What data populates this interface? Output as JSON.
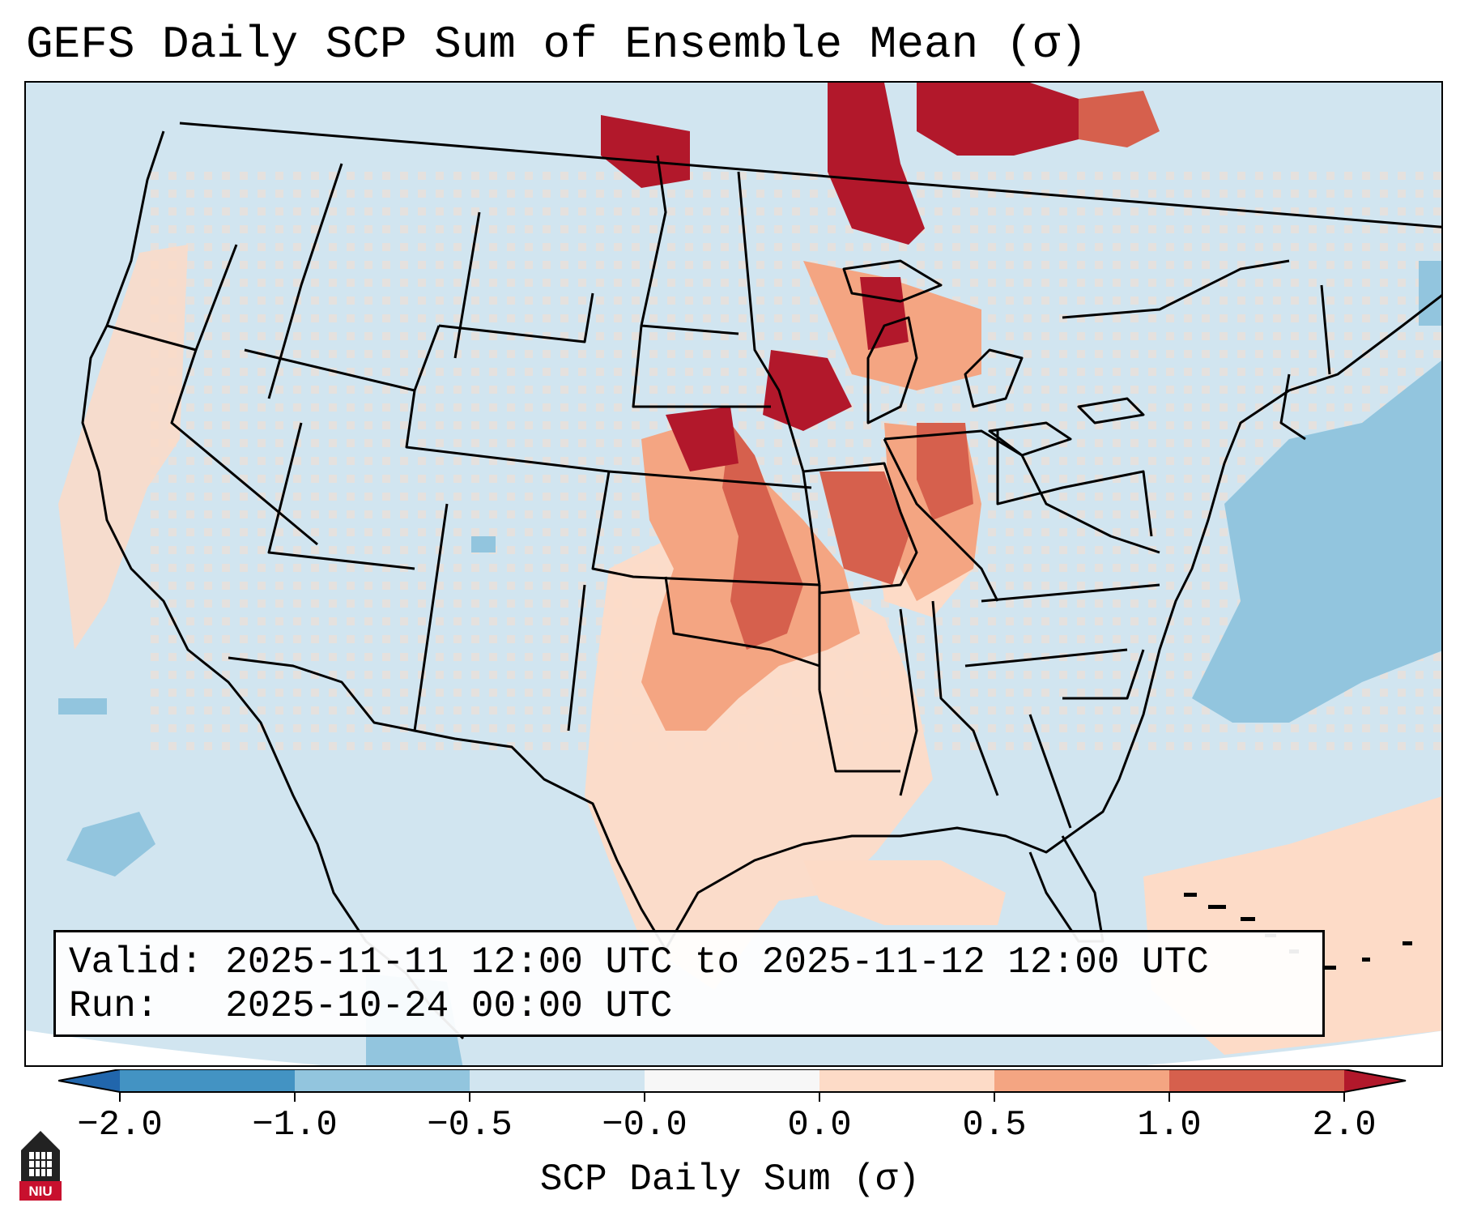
{
  "title": "GEFS Daily SCP Sum of Ensemble Mean (σ)",
  "info": {
    "valid_line": "Valid: 2025-11-11 12:00 UTC to 2025-11-12 12:00 UTC",
    "run_line": "Run:   2025-10-24 00:00 UTC"
  },
  "chart_data": {
    "type": "heatmap",
    "title": "GEFS Daily SCP Sum of Ensemble Mean (σ)",
    "colorbar": {
      "label": "SCP Daily Sum (σ)",
      "ticks": [
        "−2.0",
        "−1.0",
        "−0.5",
        "−0.0",
        "0.0",
        "0.5",
        "1.0",
        "2.0"
      ],
      "bins": [
        {
          "range": "< -2.0",
          "color": "#2166ac"
        },
        {
          "range": "-2.0 to -1.0",
          "color": "#4393c3"
        },
        {
          "range": "-1.0 to -0.5",
          "color": "#92c5de"
        },
        {
          "range": "-0.5 to -0.0",
          "color": "#d1e5f0"
        },
        {
          "range": "-0.0 to 0.0",
          "color": "#f7f7f7"
        },
        {
          "range": "0.0 to 0.5",
          "color": "#fddbc7"
        },
        {
          "range": "0.5 to 1.0",
          "color": "#f4a582"
        },
        {
          "range": "1.0 to 2.0",
          "color": "#d6604d"
        },
        {
          "range": "> 2.0",
          "color": "#b2182b"
        }
      ]
    },
    "regions": [
      {
        "area": "Upper Midwest / Minnesota / western Ontario",
        "value_range": "> 2.0"
      },
      {
        "area": "Nebraska / Iowa / Kansas corridor",
        "value_range": "1.0 to 2.0"
      },
      {
        "area": "Missouri / Illinois / eastern Oklahoma",
        "value_range": "0.5 to 1.0"
      },
      {
        "area": "Southern Plains / Gulf Coast",
        "value_range": "0.0 to 0.5"
      },
      {
        "area": "Western Atlantic off the Mid-Atlantic",
        "value_range": "-1.0 to -0.5"
      },
      {
        "area": "Remainder of domain",
        "value_range": "-0.5 to -0.0"
      }
    ]
  },
  "logo": {
    "text": "NIU",
    "color": "#c8102e"
  }
}
